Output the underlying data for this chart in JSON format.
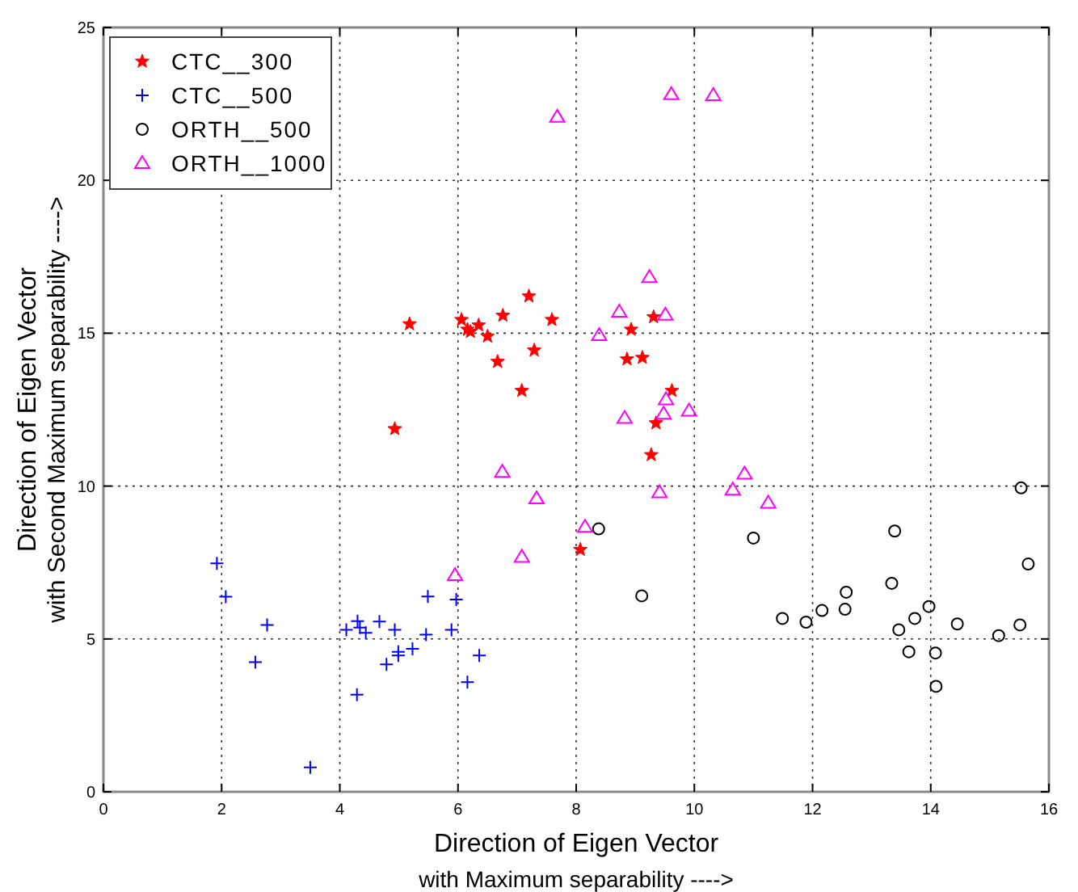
{
  "chart_data": {
    "type": "scatter",
    "xlabel": "Direction of Eigen Vector\nwith Maximum separability  ---->",
    "ylabel": "Direction of Eigen Vector\nwith Second Maximum separability  ---->",
    "xlim": [
      0,
      16
    ],
    "ylim": [
      0,
      25
    ],
    "xticks": [
      0,
      2,
      4,
      6,
      8,
      10,
      12,
      14,
      16
    ],
    "yticks": [
      0,
      5,
      10,
      15,
      20,
      25
    ],
    "grid": true,
    "legend": "top left",
    "series": [
      {
        "name": "CTC__300",
        "color": "#ff0000",
        "marker": "star",
        "x": [
          5.18,
          4.93,
          6.06,
          6.16,
          6.21,
          6.35,
          6.5,
          6.76,
          7.2,
          7.59,
          6.67,
          7.29,
          7.08,
          8.07,
          8.93,
          9.31,
          8.86,
          9.12,
          9.62,
          9.35,
          9.27
        ],
        "values": [
          15.3,
          11.87,
          15.44,
          15.12,
          15.05,
          15.26,
          14.9,
          15.58,
          16.21,
          15.44,
          14.07,
          14.44,
          13.12,
          7.92,
          15.12,
          15.53,
          14.15,
          14.2,
          13.12,
          12.06,
          11.02
        ]
      },
      {
        "name": "CTC__500",
        "color": "#0000ff",
        "marker": "cross",
        "x": [
          1.92,
          2.07,
          2.77,
          2.57,
          3.5,
          4.11,
          4.3,
          4.34,
          4.44,
          4.67,
          4.93,
          4.29,
          4.79,
          4.99,
          4.99,
          5.23,
          5.46,
          5.49,
          5.89,
          5.97,
          6.16,
          6.36
        ],
        "values": [
          7.47,
          6.38,
          5.46,
          4.24,
          0.8,
          5.3,
          5.58,
          5.37,
          5.2,
          5.57,
          5.3,
          3.18,
          4.17,
          4.46,
          4.58,
          4.68,
          5.14,
          6.39,
          5.3,
          6.29,
          3.59,
          4.46
        ]
      },
      {
        "name": "ORTH__500",
        "color": "#000000",
        "marker": "circle",
        "x": [
          8.38,
          9.11,
          11.0,
          11.49,
          11.89,
          12.16,
          12.55,
          12.57,
          13.34,
          13.39,
          13.46,
          13.63,
          13.73,
          13.97,
          14.08,
          14.09,
          14.45,
          15.15,
          15.51,
          15.53,
          15.65
        ],
        "values": [
          8.6,
          6.41,
          8.3,
          5.67,
          5.55,
          5.93,
          5.97,
          6.53,
          6.82,
          8.53,
          5.3,
          4.58,
          5.67,
          6.06,
          4.54,
          3.45,
          5.49,
          5.11,
          5.46,
          9.94,
          7.45
        ]
      },
      {
        "name": "ORTH__1000",
        "color": "#ff00ff",
        "marker": "triangle",
        "x": [
          7.68,
          9.61,
          10.32,
          9.24,
          8.73,
          9.51,
          8.39,
          9.52,
          9.48,
          8.82,
          9.91,
          6.75,
          7.33,
          7.08,
          5.95,
          8.15,
          9.41,
          10.85,
          10.65,
          11.25
        ],
        "values": [
          22.07,
          22.81,
          22.78,
          16.83,
          15.7,
          15.6,
          14.93,
          12.83,
          12.36,
          12.22,
          12.46,
          10.46,
          9.59,
          7.68,
          7.08,
          8.66,
          9.79,
          10.4,
          9.88,
          9.45
        ]
      }
    ]
  }
}
